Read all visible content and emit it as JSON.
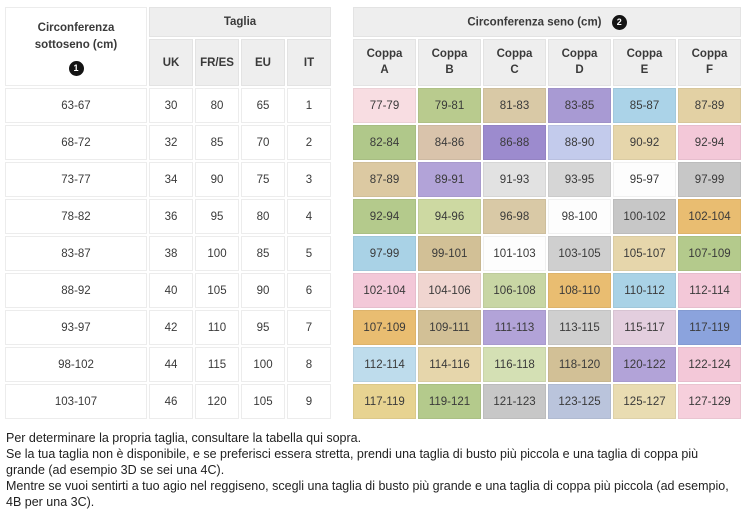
{
  "table": {
    "underbust_header": "Circonferenza sottoseno (cm)",
    "underbust_badge": "1",
    "taglia_header": "Taglia",
    "seno_header": "Circonferenza seno (cm)",
    "seno_badge": "2",
    "size_columns": [
      "UK",
      "FR/ES",
      "EU",
      "IT"
    ],
    "cup_columns": [
      "Coppa A",
      "Coppa B",
      "Coppa C",
      "Coppa D",
      "Coppa E",
      "Coppa F"
    ],
    "rows": [
      {
        "underbust": "63-67",
        "sizes": [
          "30",
          "80",
          "65",
          "1"
        ],
        "cups": [
          {
            "range": "77-79",
            "color": "#f8dde2"
          },
          {
            "range": "79-81",
            "color": "#b9cb8e"
          },
          {
            "range": "81-83",
            "color": "#d9c9a6"
          },
          {
            "range": "83-85",
            "color": "#a89ad3"
          },
          {
            "range": "85-87",
            "color": "#abd3e8"
          },
          {
            "range": "87-89",
            "color": "#e3d1a4"
          }
        ]
      },
      {
        "underbust": "68-72",
        "sizes": [
          "32",
          "85",
          "70",
          "2"
        ],
        "cups": [
          {
            "range": "82-84",
            "color": "#b0c88a"
          },
          {
            "range": "84-86",
            "color": "#d9c3ab"
          },
          {
            "range": "86-88",
            "color": "#9c8bce"
          },
          {
            "range": "88-90",
            "color": "#c3cbec"
          },
          {
            "range": "90-92",
            "color": "#e6d6ab"
          },
          {
            "range": "92-94",
            "color": "#f3c8d8"
          }
        ]
      },
      {
        "underbust": "73-77",
        "sizes": [
          "34",
          "90",
          "75",
          "3"
        ],
        "cups": [
          {
            "range": "87-89",
            "color": "#dcc9a2"
          },
          {
            "range": "89-91",
            "color": "#b2a3d8"
          },
          {
            "range": "91-93",
            "color": "#e2e2e2"
          },
          {
            "range": "93-95",
            "color": "#d6d6d6"
          },
          {
            "range": "95-97",
            "color": "#fdfdfd"
          },
          {
            "range": "97-99",
            "color": "#c7c7c7"
          }
        ]
      },
      {
        "underbust": "78-82",
        "sizes": [
          "36",
          "95",
          "80",
          "4"
        ],
        "cups": [
          {
            "range": "92-94",
            "color": "#b4ca8c"
          },
          {
            "range": "94-96",
            "color": "#cdd9a2"
          },
          {
            "range": "96-98",
            "color": "#d9c9a6"
          },
          {
            "range": "98-100",
            "color": "#fdfdfd"
          },
          {
            "range": "100-102",
            "color": "#c7c7c7"
          },
          {
            "range": "102-104",
            "color": "#e9bd71"
          }
        ]
      },
      {
        "underbust": "83-87",
        "sizes": [
          "38",
          "100",
          "85",
          "5"
        ],
        "cups": [
          {
            "range": "97-99",
            "color": "#a9d2e6"
          },
          {
            "range": "99-101",
            "color": "#d2c096"
          },
          {
            "range": "101-103",
            "color": "#fdfdfd"
          },
          {
            "range": "103-105",
            "color": "#cfcfcf"
          },
          {
            "range": "105-107",
            "color": "#e6d6ab"
          },
          {
            "range": "107-109",
            "color": "#b4ca8c"
          }
        ]
      },
      {
        "underbust": "88-92",
        "sizes": [
          "40",
          "105",
          "90",
          "6"
        ],
        "cups": [
          {
            "range": "102-104",
            "color": "#f3c8d8"
          },
          {
            "range": "104-106",
            "color": "#f0d5d0"
          },
          {
            "range": "106-108",
            "color": "#c8d6a4"
          },
          {
            "range": "108-110",
            "color": "#e9bd71"
          },
          {
            "range": "110-112",
            "color": "#a9d2e6"
          },
          {
            "range": "112-114",
            "color": "#f3c8d8"
          }
        ]
      },
      {
        "underbust": "93-97",
        "sizes": [
          "42",
          "110",
          "95",
          "7"
        ],
        "cups": [
          {
            "range": "107-109",
            "color": "#e9bd71"
          },
          {
            "range": "109-111",
            "color": "#d2c096"
          },
          {
            "range": "111-113",
            "color": "#b2a3d8"
          },
          {
            "range": "113-115",
            "color": "#cfcfcf"
          },
          {
            "range": "115-117",
            "color": "#e3cede"
          },
          {
            "range": "117-119",
            "color": "#8ba3dd"
          }
        ]
      },
      {
        "underbust": "98-102",
        "sizes": [
          "44",
          "115",
          "100",
          "8"
        ],
        "cups": [
          {
            "range": "112-114",
            "color": "#bedcec"
          },
          {
            "range": "114-116",
            "color": "#e6d6ab"
          },
          {
            "range": "116-118",
            "color": "#d4e0b4"
          },
          {
            "range": "118-120",
            "color": "#d2c096"
          },
          {
            "range": "120-122",
            "color": "#b2a3d8"
          },
          {
            "range": "122-124",
            "color": "#f3c8d8"
          }
        ]
      },
      {
        "underbust": "103-107",
        "sizes": [
          "46",
          "120",
          "105",
          "9"
        ],
        "cups": [
          {
            "range": "117-119",
            "color": "#e7d391"
          },
          {
            "range": "119-121",
            "color": "#b4ca8c"
          },
          {
            "range": "121-123",
            "color": "#c7c7c7"
          },
          {
            "range": "123-125",
            "color": "#bac4dc"
          },
          {
            "range": "125-127",
            "color": "#e9dcb2"
          },
          {
            "range": "127-129",
            "color": "#f6cfdc"
          }
        ]
      }
    ]
  },
  "footer": {
    "line1": "Per determinare la propria taglia, consultare la tabella qui sopra.",
    "line2": "Se la tua taglia non è disponibile, e se preferisci essera stretta, prendi una taglia di busto più piccola e una taglia di coppa più grande (ad esempio 3D se sei una 4C).",
    "line3": "Mentre se vuoi sentirti a tuo agio nel reggiseno, scegli una taglia di busto più grande e una taglia di coppa più piccola (ad esempio, 4B per una 3C)."
  }
}
